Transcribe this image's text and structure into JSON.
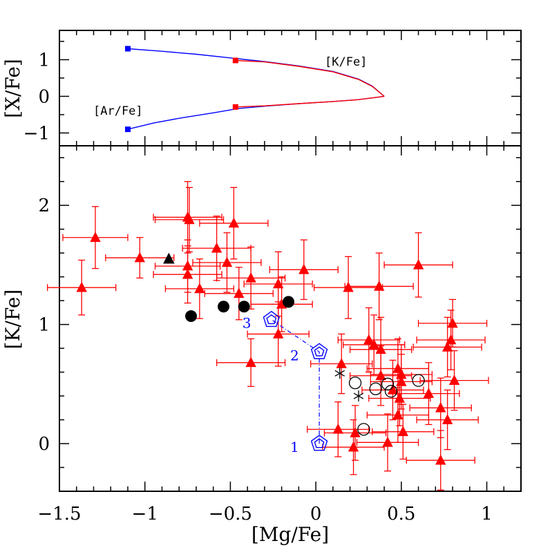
{
  "chart_data": [
    {
      "type": "line",
      "panel": "top",
      "ylabel": "[X/Fe]",
      "xlim": [
        -1.5,
        1.2
      ],
      "ylim": [
        -1.35,
        1.8
      ],
      "y_ticks": [
        -1,
        0,
        1
      ],
      "y_tick_labels": [
        "−1",
        "0",
        "1"
      ],
      "curve_labels": [
        "[K/Fe]",
        "[Ar/Fe]"
      ],
      "series": [
        {
          "name": "[K/Fe] (blue)",
          "color": "#0000ff",
          "points": [
            [
              -1.1,
              1.3
            ],
            [
              -0.9,
              1.23
            ],
            [
              -0.7,
              1.15
            ],
            [
              -0.5,
              1.05
            ],
            [
              -0.3,
              0.95
            ],
            [
              -0.1,
              0.83
            ],
            [
              0.1,
              0.68
            ],
            [
              0.25,
              0.47
            ],
            [
              0.33,
              0.28
            ],
            [
              0.4,
              0
            ]
          ]
        },
        {
          "name": "[K/Fe] (red)",
          "color": "#ff0000",
          "points": [
            [
              -0.47,
              0.98
            ],
            [
              -0.3,
              0.94
            ],
            [
              -0.1,
              0.82
            ],
            [
              0.1,
              0.67
            ],
            [
              0.25,
              0.46
            ],
            [
              0.33,
              0.27
            ],
            [
              0.4,
              0
            ]
          ]
        },
        {
          "name": "[Ar/Fe] (blue)",
          "color": "#0000ff",
          "points": [
            [
              -1.1,
              -0.9
            ],
            [
              -0.95,
              -0.73
            ],
            [
              -0.8,
              -0.6
            ],
            [
              -0.6,
              -0.45
            ],
            [
              -0.45,
              -0.33
            ],
            [
              -0.3,
              -0.27
            ],
            [
              -0.1,
              -0.2
            ],
            [
              0.1,
              -0.14
            ],
            [
              0.25,
              -0.09
            ],
            [
              0.4,
              0
            ]
          ]
        },
        {
          "name": "[Ar/Fe] (red)",
          "color": "#ff0000",
          "points": [
            [
              -0.47,
              -0.29
            ],
            [
              -0.3,
              -0.26
            ],
            [
              -0.1,
              -0.2
            ],
            [
              0.1,
              -0.14
            ],
            [
              0.25,
              -0.09
            ],
            [
              0.4,
              0
            ]
          ]
        }
      ],
      "markers": [
        {
          "x": -1.1,
          "y": 1.3,
          "color": "#0000ff"
        },
        {
          "x": -1.1,
          "y": -0.9,
          "color": "#0000ff"
        },
        {
          "x": -0.47,
          "y": 0.98,
          "color": "#ff0000"
        },
        {
          "x": -0.47,
          "y": -0.29,
          "color": "#ff0000"
        }
      ]
    },
    {
      "type": "scatter",
      "panel": "bottom",
      "xlabel": "[Mg/Fe]",
      "ylabel": "[K/Fe]",
      "xlim": [
        -1.5,
        1.2
      ],
      "ylim": [
        -0.4,
        2.5
      ],
      "x_ticks": [
        -1.5,
        -1,
        -0.5,
        0,
        0.5,
        1
      ],
      "x_tick_labels": [
        "−1.5",
        "−1",
        "−0.5",
        "0",
        "0.5",
        "1"
      ],
      "y_ticks": [
        0,
        1,
        2
      ],
      "y_tick_labels": [
        "0",
        "1",
        "2"
      ],
      "series": [
        {
          "name": "red triangles with error bars",
          "marker": "triangle",
          "color": "#ff0000",
          "points": [
            {
              "x": -1.29,
              "y": 1.73,
              "ex": 0.19,
              "ey": 0.26
            },
            {
              "x": -1.37,
              "y": 1.31,
              "ex": 0.2,
              "ey": 0.23
            },
            {
              "x": -1.03,
              "y": 1.56,
              "ex": 0.2,
              "ey": 0.17
            },
            {
              "x": -0.75,
              "y": 1.9,
              "ex": 0.2,
              "ey": 0.3
            },
            {
              "x": -0.74,
              "y": 1.88,
              "ex": 0.2,
              "ey": 0.27
            },
            {
              "x": -0.75,
              "y": 1.49,
              "ex": 0.19,
              "ey": 0.22
            },
            {
              "x": -0.75,
              "y": 1.42,
              "ex": 0.2,
              "ey": 0.24
            },
            {
              "x": -0.68,
              "y": 1.3,
              "ex": 0.2,
              "ey": 0.25
            },
            {
              "x": -0.58,
              "y": 1.64,
              "ex": 0.2,
              "ey": 0.27
            },
            {
              "x": -0.52,
              "y": 1.52,
              "ex": 0.2,
              "ey": 0.25
            },
            {
              "x": -0.48,
              "y": 1.85,
              "ex": 0.2,
              "ey": 0.3
            },
            {
              "x": -0.45,
              "y": 1.26,
              "ex": 0.2,
              "ey": 0.22
            },
            {
              "x": -0.38,
              "y": 1.39,
              "ex": 0.2,
              "ey": 0.26
            },
            {
              "x": -0.22,
              "y": 1.34,
              "ex": 0.2,
              "ey": 0.27
            },
            {
              "x": -0.2,
              "y": 1.17,
              "ex": 0.18,
              "ey": 0.23
            },
            {
              "x": -0.22,
              "y": 0.92,
              "ex": 0.18,
              "ey": 0.27
            },
            {
              "x": -0.38,
              "y": 0.68,
              "ex": 0.2,
              "ey": 0.2
            },
            {
              "x": -0.07,
              "y": 1.46,
              "ex": 0.2,
              "ey": 0.25
            },
            {
              "x": 0.19,
              "y": 1.31,
              "ex": 0.2,
              "ey": 0.26
            },
            {
              "x": 0.37,
              "y": 1.32,
              "ex": 0.2,
              "ey": 0.28
            },
            {
              "x": 0.6,
              "y": 1.5,
              "ex": 0.2,
              "ey": 0.27
            },
            {
              "x": 0.31,
              "y": 0.87,
              "ex": 0.18,
              "ey": 0.27
            },
            {
              "x": 0.34,
              "y": 0.83,
              "ex": 0.18,
              "ey": 0.25
            },
            {
              "x": 0.38,
              "y": 0.79,
              "ex": 0.18,
              "ey": 0.27
            },
            {
              "x": 0.15,
              "y": 0.67,
              "ex": 0.18,
              "ey": 0.25
            },
            {
              "x": 0.38,
              "y": 0.57,
              "ex": 0.18,
              "ey": 0.25
            },
            {
              "x": 0.45,
              "y": 0.45,
              "ex": 0.18,
              "ey": 0.25
            },
            {
              "x": 0.48,
              "y": 0.63,
              "ex": 0.18,
              "ey": 0.25
            },
            {
              "x": 0.5,
              "y": 0.58,
              "ex": 0.18,
              "ey": 0.25
            },
            {
              "x": 0.5,
              "y": 0.52,
              "ex": 0.18,
              "ey": 0.23
            },
            {
              "x": 0.49,
              "y": 0.38,
              "ex": 0.18,
              "ey": 0.23
            },
            {
              "x": 0.48,
              "y": 0.24,
              "ex": 0.18,
              "ey": 0.23
            },
            {
              "x": 0.51,
              "y": 0.1,
              "ex": 0.18,
              "ey": 0.23
            },
            {
              "x": 0.42,
              "y": 0.01,
              "ex": 0.18,
              "ey": 0.24
            },
            {
              "x": 0.22,
              "y": -0.03,
              "ex": 0.18,
              "ey": 0.23
            },
            {
              "x": 0.13,
              "y": 0.12,
              "ex": 0.18,
              "ey": 0.23
            },
            {
              "x": 0.23,
              "y": 0.09,
              "ex": 0.18,
              "ey": 0.23
            },
            {
              "x": 0.66,
              "y": 0.42,
              "ex": 0.18,
              "ey": 0.26
            },
            {
              "x": 0.73,
              "y": 0.3,
              "ex": 0.18,
              "ey": 0.25
            },
            {
              "x": 0.77,
              "y": 0.2,
              "ex": 0.18,
              "ey": 0.25
            },
            {
              "x": 0.8,
              "y": 1.01,
              "ex": 0.2,
              "ey": 0.2
            },
            {
              "x": 0.79,
              "y": 0.87,
              "ex": 0.2,
              "ey": 0.25
            },
            {
              "x": 0.77,
              "y": 0.81,
              "ex": 0.2,
              "ey": 0.25
            },
            {
              "x": 0.81,
              "y": 0.53,
              "ex": 0.2,
              "ey": 0.25
            },
            {
              "x": 0.73,
              "y": -0.14,
              "ex": 0.2,
              "ey": 0.25
            }
          ]
        },
        {
          "name": "black triangle",
          "marker": "triangle",
          "color": "#000000",
          "points": [
            {
              "x": -0.86,
              "y": 1.55
            }
          ]
        },
        {
          "name": "black filled circles",
          "marker": "circle-filled",
          "color": "#000000",
          "points": [
            {
              "x": -0.73,
              "y": 1.07
            },
            {
              "x": -0.54,
              "y": 1.15
            },
            {
              "x": -0.42,
              "y": 1.15
            },
            {
              "x": -0.16,
              "y": 1.19
            }
          ]
        },
        {
          "name": "open circles",
          "marker": "circle-open",
          "color": "#000000",
          "points": [
            {
              "x": 0.23,
              "y": 0.51
            },
            {
              "x": 0.35,
              "y": 0.46
            },
            {
              "x": 0.42,
              "y": 0.5
            },
            {
              "x": 0.44,
              "y": 0.44
            },
            {
              "x": 0.6,
              "y": 0.53
            },
            {
              "x": 0.28,
              "y": 0.12
            }
          ]
        },
        {
          "name": "asterisks",
          "marker": "asterisk",
          "color": "#000000",
          "points": [
            {
              "x": 0.14,
              "y": 0.59
            },
            {
              "x": 0.25,
              "y": 0.4
            }
          ]
        },
        {
          "name": "model track",
          "marker": "pentagon-double",
          "color": "#0000ff",
          "points": [
            {
              "x": 0.02,
              "y": 0.0,
              "label": "1"
            },
            {
              "x": 0.02,
              "y": 0.77,
              "label": "2"
            },
            {
              "x": -0.26,
              "y": 1.04,
              "label": "3"
            }
          ]
        }
      ]
    }
  ]
}
